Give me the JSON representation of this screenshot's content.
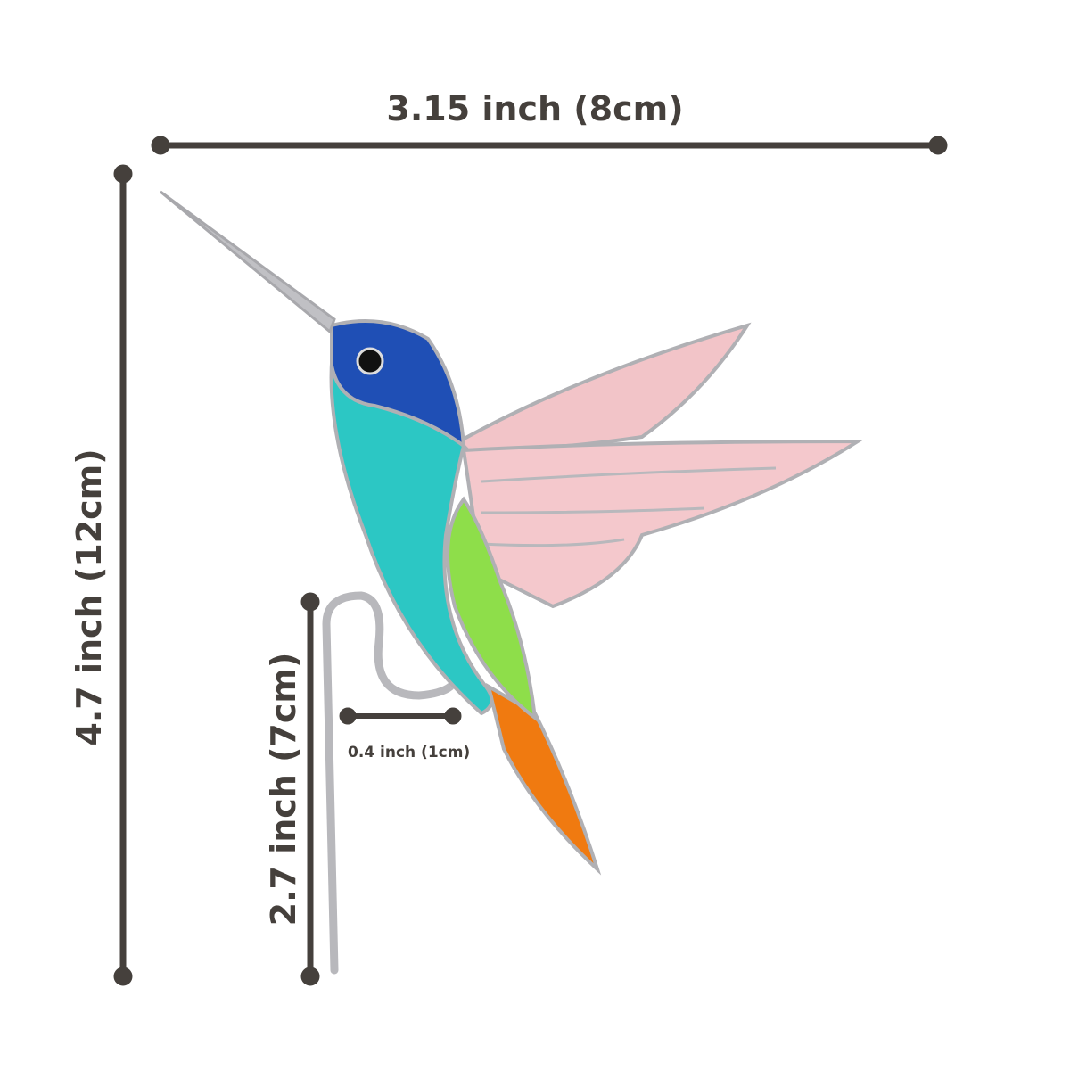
{
  "dimensions": {
    "width_label": "3.15 inch (8cm)",
    "height_label": "4.7 inch (12cm)",
    "stake_label": "2.7 inch (7cm)",
    "perch_label": "0.4 inch (1cm)"
  },
  "colors": {
    "dimension_line": "#45403c",
    "head": "#1f4fb5",
    "body": "#2cc7c4",
    "wing": "#f2c4c8",
    "side": "#8ede4a",
    "tail": "#f07a10",
    "lead": "#b8b8bc"
  }
}
